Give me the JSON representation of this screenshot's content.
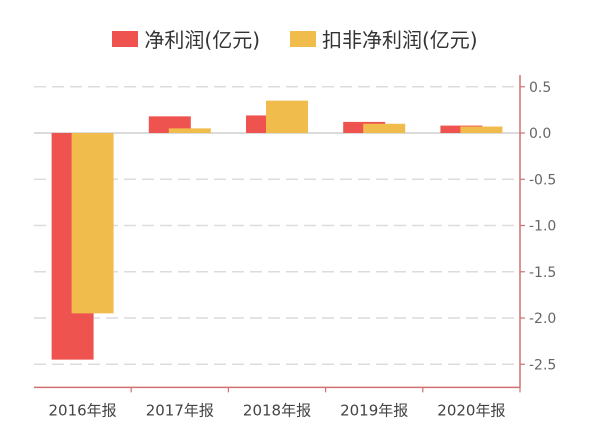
{
  "chart_data": {
    "type": "bar",
    "categories": [
      "2016年报",
      "2017年报",
      "2018年报",
      "2019年报",
      "2020年报"
    ],
    "series": [
      {
        "name": "净利润(亿元)",
        "color": "#ef5350",
        "values": [
          -2.45,
          0.18,
          0.19,
          0.12,
          0.08
        ]
      },
      {
        "name": "扣非净利润(亿元)",
        "color": "#f0bc4c",
        "values": [
          -1.95,
          0.05,
          0.35,
          0.1,
          0.07
        ]
      }
    ],
    "y_ticks": [
      "0.5",
      "0.0",
      "-0.5",
      "-1.0",
      "-1.5",
      "-2.0",
      "-2.5"
    ],
    "ylim": [
      -2.75,
      0.6
    ],
    "axis_color": "#d07070",
    "grid": "dashed",
    "legend": "top-center",
    "y_axis_position": "right"
  }
}
